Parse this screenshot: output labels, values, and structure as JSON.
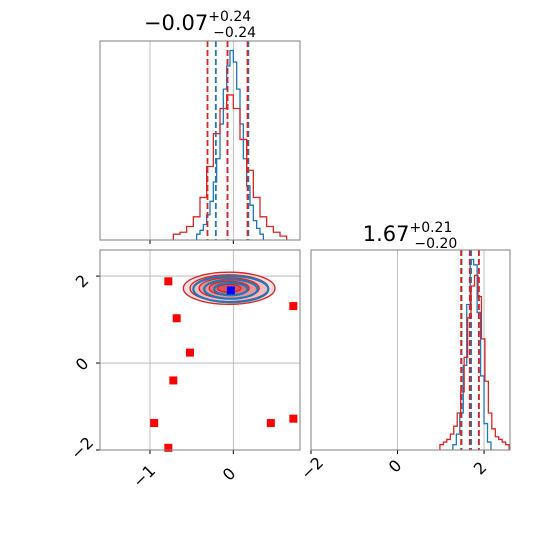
{
  "colors": {
    "blue": "#1f77b4",
    "red": "#d62728",
    "marker_red": "#ff0000",
    "marker_blue": "#0000ff"
  },
  "chart_data": [
    {
      "type": "histogram",
      "panel": "marginal-x",
      "title": {
        "main": "−0.07",
        "sup": "+0.24",
        "sub": "−0.24"
      },
      "xlim": [
        -1.6,
        0.8
      ],
      "grid": true,
      "series": [
        {
          "name": "",
          "color": "blue",
          "bins": [
            -0.44,
            -0.4,
            -0.36,
            -0.32,
            -0.28,
            -0.24,
            -0.2,
            -0.16,
            -0.12,
            -0.08,
            -0.04,
            0.0,
            0.04,
            0.08,
            0.12,
            0.16,
            0.2,
            0.24,
            0.28,
            0.32
          ],
          "counts": [
            3,
            5,
            8,
            13,
            20,
            30,
            42,
            60,
            78,
            90,
            98,
            92,
            78,
            60,
            42,
            28,
            18,
            10,
            6,
            3
          ],
          "quantiles": [
            -0.21,
            -0.07,
            0.18
          ]
        },
        {
          "name": "",
          "color": "red",
          "bins": [
            -0.72,
            -0.64,
            -0.56,
            -0.48,
            -0.4,
            -0.32,
            -0.24,
            -0.16,
            -0.08,
            0.0,
            0.08,
            0.16,
            0.24,
            0.32,
            0.4,
            0.48,
            0.56
          ],
          "counts": [
            3,
            4,
            7,
            12,
            22,
            38,
            55,
            68,
            75,
            68,
            52,
            36,
            22,
            12,
            7,
            4,
            2
          ],
          "quantiles": [
            -0.31,
            -0.07,
            0.17
          ]
        }
      ]
    },
    {
      "type": "scatter",
      "panel": "joint",
      "xlim": [
        -1.6,
        0.8
      ],
      "ylim": [
        -2.0,
        2.6
      ],
      "xticks": [
        "−1",
        "0"
      ],
      "yticks": [
        "−2",
        "0",
        "2"
      ],
      "grid": true,
      "contours": [
        {
          "color": "red",
          "center": [
            -0.05,
            1.72
          ],
          "rx": [
            0.55,
            0.47,
            0.36,
            0.24,
            0.14
          ],
          "ry": [
            0.37,
            0.31,
            0.24,
            0.16,
            0.09
          ]
        },
        {
          "color": "blue",
          "center": [
            -0.03,
            1.7
          ],
          "rx": [
            0.45,
            0.32,
            0.2
          ],
          "ry": [
            0.3,
            0.22,
            0.14
          ]
        }
      ],
      "markers": [
        {
          "color": "marker_red",
          "x": -0.78,
          "y": 1.88
        },
        {
          "color": "marker_red",
          "x": 0.72,
          "y": 1.31
        },
        {
          "color": "marker_red",
          "x": -0.68,
          "y": 1.03
        },
        {
          "color": "marker_red",
          "x": -0.52,
          "y": 0.24
        },
        {
          "color": "marker_red",
          "x": -0.72,
          "y": -0.4
        },
        {
          "color": "marker_red",
          "x": -0.95,
          "y": -1.38
        },
        {
          "color": "marker_red",
          "x": 0.45,
          "y": -1.38
        },
        {
          "color": "marker_red",
          "x": 0.72,
          "y": -1.28
        },
        {
          "color": "marker_red",
          "x": -0.78,
          "y": -1.95
        },
        {
          "color": "marker_blue",
          "x": -0.03,
          "y": 1.67
        }
      ]
    },
    {
      "type": "histogram",
      "panel": "marginal-y",
      "title": {
        "main": "1.67",
        "sup": "+0.21",
        "sub": "−0.20"
      },
      "xlim": [
        -2.0,
        2.6
      ],
      "xticks": [
        "−2",
        "0",
        "2"
      ],
      "grid": true,
      "series": [
        {
          "name": "",
          "color": "blue",
          "bins": [
            1.28,
            1.36,
            1.44,
            1.52,
            1.6,
            1.68,
            1.76,
            1.84,
            1.92,
            2.0,
            2.08
          ],
          "counts": [
            2,
            6,
            14,
            32,
            55,
            72,
            70,
            52,
            28,
            10,
            3
          ],
          "quantiles": [
            1.48,
            1.7,
            1.88
          ]
        },
        {
          "name": "",
          "color": "red",
          "bins": [
            0.98,
            1.06,
            1.14,
            1.22,
            1.3,
            1.38,
            1.46,
            1.54,
            1.62,
            1.7,
            1.78,
            1.86,
            1.94,
            2.02,
            2.1,
            2.18,
            2.26,
            2.34,
            2.42,
            2.5
          ],
          "counts": [
            2,
            3,
            4,
            6,
            9,
            14,
            22,
            35,
            50,
            62,
            66,
            58,
            42,
            26,
            14,
            8,
            5,
            4,
            3,
            2
          ],
          "quantiles": [
            1.47,
            1.67,
            1.88
          ]
        }
      ]
    }
  ]
}
